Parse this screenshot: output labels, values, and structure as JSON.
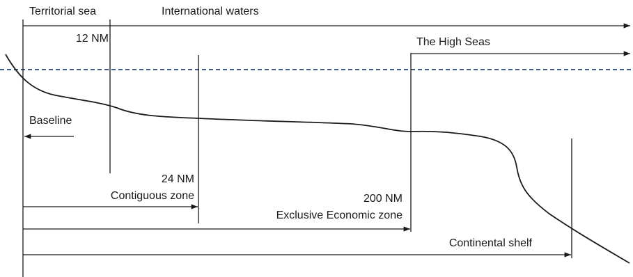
{
  "labels": {
    "territorial_sea": "Territorial sea",
    "international_waters": "International waters",
    "nm_12": "12 NM",
    "high_seas": "The High Seas",
    "baseline": "Baseline",
    "nm_24": "24 NM",
    "contiguous_zone": "Contiguous zone",
    "nm_200": "200 NM",
    "eez": "Exclusive Economic zone",
    "continental_shelf": "Continental shelf"
  },
  "colors": {
    "line": "#1a1a1a",
    "sea_level": "#3d5a8a",
    "text": "#1a1a1a",
    "background": "#ffffff"
  }
}
